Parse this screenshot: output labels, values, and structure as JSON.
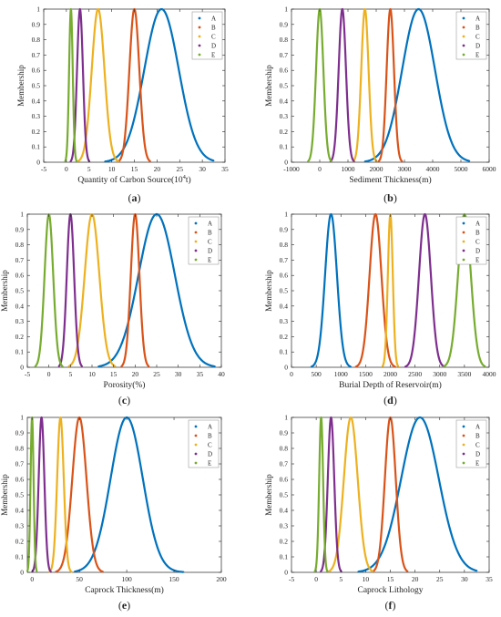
{
  "figure": {
    "panels": [
      {
        "id": "a",
        "caption_letter": "a",
        "caption_open": "(",
        "caption_close": ")"
      },
      {
        "id": "b",
        "caption_letter": "b",
        "caption_open": "(",
        "caption_close": ")"
      },
      {
        "id": "c",
        "caption_letter": "c",
        "caption_open": "(",
        "caption_close": ")"
      },
      {
        "id": "d",
        "caption_letter": "d",
        "caption_open": "(",
        "caption_close": ")"
      },
      {
        "id": "e",
        "caption_letter": "e",
        "caption_open": "(",
        "caption_close": ")"
      },
      {
        "id": "f",
        "caption_letter": "f",
        "caption_open": "(",
        "caption_close": ")"
      }
    ]
  },
  "colors": {
    "A": "#0072BD",
    "B": "#D95319",
    "C": "#EDB120",
    "D": "#7E2F8E",
    "E": "#77AC30"
  },
  "chart_data": [
    {
      "type": "line",
      "xlabel_parts": [
        "Quantity of Carbon Source(10",
        "4",
        "t)"
      ],
      "ylabel": "Membership",
      "xlim": [
        -5,
        35
      ],
      "ylim": [
        0,
        1
      ],
      "xticks": [
        "-5",
        "0",
        "5",
        "10",
        "15",
        "20",
        "25",
        "30",
        "35"
      ],
      "xtick_values": [
        -5,
        0,
        5,
        10,
        15,
        20,
        25,
        30,
        35
      ],
      "yticks": [
        "0",
        "0.1",
        "0.2",
        "0.3",
        "0.4",
        "0.5",
        "0.6",
        "0.7",
        "0.8",
        "0.9",
        "1"
      ],
      "ytick_values": [
        0,
        0.1,
        0.2,
        0.3,
        0.4,
        0.5,
        0.6,
        0.7,
        0.8,
        0.9,
        1
      ],
      "legend": "top-right",
      "grid": false,
      "series": [
        {
          "name": "A",
          "mean": 21,
          "sd": 3.8,
          "range": [
            8.5,
            32.5
          ]
        },
        {
          "name": "B",
          "mean": 15,
          "sd": 1.1,
          "range": [
            11.5,
            18.5
          ]
        },
        {
          "name": "C",
          "mean": 7,
          "sd": 1.4,
          "range": [
            2.5,
            11.5
          ]
        },
        {
          "name": "D",
          "mean": 3,
          "sd": 0.65,
          "range": [
            0.9,
            5.1
          ]
        },
        {
          "name": "E",
          "mean": 1,
          "sd": 0.4,
          "range": [
            -0.3,
            2.3
          ]
        }
      ]
    },
    {
      "type": "line",
      "xlabel": "Sediment Thickness(m)",
      "ylabel": "Membership",
      "xlim": [
        -1000,
        6000
      ],
      "ylim": [
        0,
        1
      ],
      "xticks": [
        "-1000",
        "0",
        "1000",
        "2000",
        "3000",
        "4000",
        "5000",
        "6000"
      ],
      "xtick_values": [
        -1000,
        0,
        1000,
        2000,
        3000,
        4000,
        5000,
        6000
      ],
      "yticks": [
        "0",
        "0.1",
        "0.2",
        "0.3",
        "0.4",
        "0.5",
        "0.6",
        "0.7",
        "0.8",
        "0.9",
        "1"
      ],
      "ytick_values": [
        0,
        0.1,
        0.2,
        0.3,
        0.4,
        0.5,
        0.6,
        0.7,
        0.8,
        0.9,
        1
      ],
      "legend": "top-right",
      "grid": false,
      "series": [
        {
          "name": "A",
          "mean": 3500,
          "sd": 580,
          "range": [
            1600,
            5300
          ]
        },
        {
          "name": "B",
          "mean": 2500,
          "sd": 130,
          "range": [
            2080,
            2920
          ]
        },
        {
          "name": "C",
          "mean": 1600,
          "sd": 130,
          "range": [
            1180,
            2020
          ]
        },
        {
          "name": "D",
          "mean": 800,
          "sd": 130,
          "range": [
            380,
            1220
          ]
        },
        {
          "name": "E",
          "mean": 0,
          "sd": 130,
          "range": [
            -420,
            420
          ]
        }
      ]
    },
    {
      "type": "line",
      "xlabel": "Porosity(%)",
      "ylabel": "Membership",
      "xlim": [
        -5,
        40
      ],
      "ylim": [
        0,
        1
      ],
      "xticks": [
        "-5",
        "0",
        "5",
        "10",
        "15",
        "20",
        "25",
        "30",
        "35",
        "40"
      ],
      "xtick_values": [
        -5,
        0,
        5,
        10,
        15,
        20,
        25,
        30,
        35,
        40
      ],
      "yticks": [
        "0",
        "0.1",
        "0.2",
        "0.3",
        "0.4",
        "0.5",
        "0.6",
        "0.7",
        "0.8",
        "0.9",
        "1"
      ],
      "ytick_values": [
        0,
        0.1,
        0.2,
        0.3,
        0.4,
        0.5,
        0.6,
        0.7,
        0.8,
        0.9,
        1
      ],
      "legend": "top-right",
      "grid": false,
      "series": [
        {
          "name": "A",
          "mean": 25,
          "sd": 4.2,
          "range": [
            11.5,
            38.5
          ]
        },
        {
          "name": "B",
          "mean": 20,
          "sd": 1.0,
          "range": [
            16.8,
            23.2
          ]
        },
        {
          "name": "C",
          "mean": 10,
          "sd": 1.7,
          "range": [
            4.6,
            15.4
          ]
        },
        {
          "name": "D",
          "mean": 5,
          "sd": 0.85,
          "range": [
            2.3,
            7.7
          ]
        },
        {
          "name": "E",
          "mean": 0,
          "sd": 1.0,
          "range": [
            -3.2,
            3.2
          ]
        }
      ]
    },
    {
      "type": "line",
      "xlabel": "Burial Depth of Reservoir(m)",
      "ylabel": "Membership",
      "xlim": [
        0,
        4000
      ],
      "ylim": [
        0,
        1
      ],
      "xticks": [
        "0",
        "500",
        "1000",
        "1500",
        "2000",
        "2500",
        "3000",
        "3500",
        "4000"
      ],
      "xtick_values": [
        0,
        500,
        1000,
        1500,
        2000,
        2500,
        3000,
        3500,
        4000
      ],
      "yticks": [
        "0",
        "0.1",
        "0.2",
        "0.3",
        "0.4",
        "0.5",
        "0.6",
        "0.7",
        "0.8",
        "0.9",
        "1"
      ],
      "ytick_values": [
        0,
        0.1,
        0.2,
        0.3,
        0.4,
        0.5,
        0.6,
        0.7,
        0.8,
        0.9,
        1
      ],
      "legend": "top-right",
      "grid": false,
      "series": [
        {
          "name": "A",
          "mean": 800,
          "sd": 120,
          "range": [
            400,
            1200
          ]
        },
        {
          "name": "B",
          "mean": 1700,
          "sd": 120,
          "range": [
            1300,
            2100
          ]
        },
        {
          "name": "C",
          "mean": 2000,
          "sd": 50,
          "range": [
            1840,
            2160
          ]
        },
        {
          "name": "D",
          "mean": 2700,
          "sd": 120,
          "range": [
            2300,
            3100
          ]
        },
        {
          "name": "E",
          "mean": 3500,
          "sd": 130,
          "range": [
            3080,
            3920
          ]
        }
      ]
    },
    {
      "type": "line",
      "xlabel": "Caprock Thickness(m)",
      "ylabel": "Membership",
      "xlim": [
        -5,
        200
      ],
      "ylim": [
        0,
        1
      ],
      "xticks": [
        "0",
        "50",
        "100",
        "150",
        "200"
      ],
      "xtick_values": [
        0,
        50,
        100,
        150,
        200
      ],
      "yticks": [
        "0",
        "0.1",
        "0.2",
        "0.3",
        "0.4",
        "0.5",
        "0.6",
        "0.7",
        "0.8",
        "0.9",
        "1"
      ],
      "ytick_values": [
        0,
        0.1,
        0.2,
        0.3,
        0.4,
        0.5,
        0.6,
        0.7,
        0.8,
        0.9,
        1
      ],
      "legend": "top-right",
      "grid": false,
      "series": [
        {
          "name": "A",
          "mean": 100,
          "sd": 17,
          "range": [
            45,
            160
          ]
        },
        {
          "name": "B",
          "mean": 50,
          "sd": 7.5,
          "range": [
            25,
            75
          ]
        },
        {
          "name": "C",
          "mean": 30,
          "sd": 3.5,
          "range": [
            18,
            42
          ]
        },
        {
          "name": "D",
          "mean": 10,
          "sd": 3.0,
          "range": [
            0,
            20
          ]
        },
        {
          "name": "E",
          "mean": 0,
          "sd": 1.6,
          "range": [
            -5,
            5
          ]
        }
      ]
    },
    {
      "type": "line",
      "xlabel": "Caprock Lithology",
      "ylabel": "Membership",
      "xlim": [
        -5,
        35
      ],
      "ylim": [
        0,
        1
      ],
      "xticks": [
        "-5",
        "0",
        "5",
        "10",
        "15",
        "20",
        "25",
        "30",
        "35"
      ],
      "xtick_values": [
        -5,
        0,
        5,
        10,
        15,
        20,
        25,
        30,
        35
      ],
      "yticks": [
        "0",
        "0.1",
        "0.2",
        "0.3",
        "0.4",
        "0.5",
        "0.6",
        "0.7",
        "0.8",
        "0.9",
        "1"
      ],
      "ytick_values": [
        0,
        0.1,
        0.2,
        0.3,
        0.4,
        0.5,
        0.6,
        0.7,
        0.8,
        0.9,
        1
      ],
      "legend": "top-right",
      "grid": false,
      "series": [
        {
          "name": "A",
          "mean": 21,
          "sd": 3.8,
          "range": [
            8.5,
            32.5
          ]
        },
        {
          "name": "B",
          "mean": 15,
          "sd": 1.1,
          "range": [
            11.5,
            18.5
          ]
        },
        {
          "name": "C",
          "mean": 7,
          "sd": 1.4,
          "range": [
            2.5,
            11.5
          ]
        },
        {
          "name": "D",
          "mean": 3,
          "sd": 0.65,
          "range": [
            0.9,
            5.1
          ]
        },
        {
          "name": "E",
          "mean": 1,
          "sd": 0.4,
          "range": [
            -0.3,
            2.3
          ]
        }
      ]
    }
  ]
}
